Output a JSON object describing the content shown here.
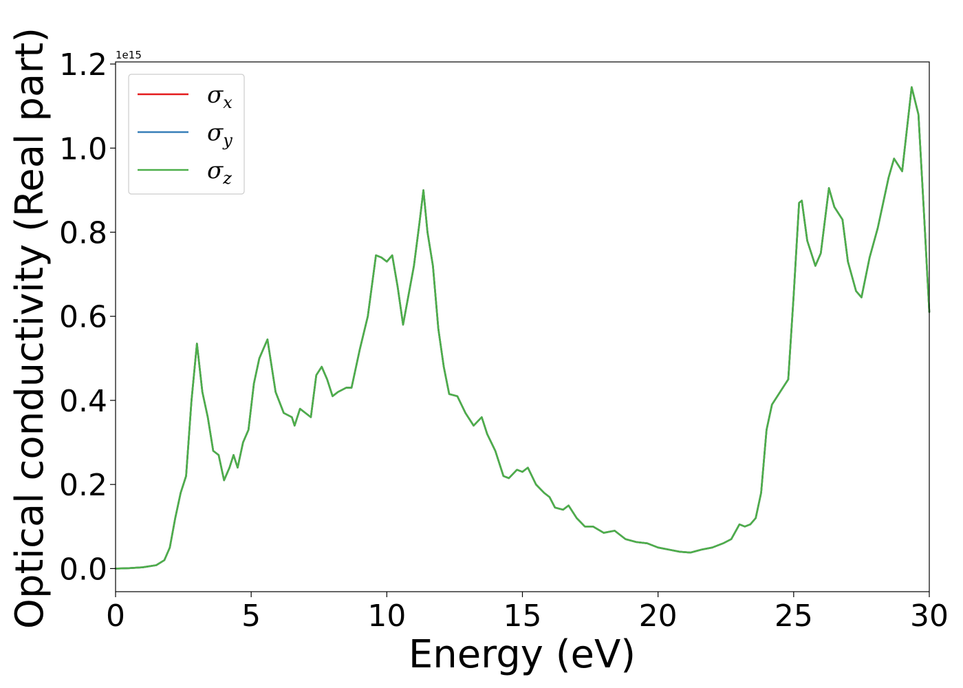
{
  "chart_data": {
    "type": "line",
    "xlabel": "Energy (eV)",
    "ylabel": "Optical conductivity (Real part)",
    "y_offset_text": "1e15",
    "y_multiplier": 1000000000000000.0,
    "xlim": [
      0,
      30
    ],
    "ylim": [
      -0.055,
      1.205
    ],
    "x_ticks": [
      0,
      5,
      10,
      15,
      20,
      25,
      30
    ],
    "x_tick_labels": [
      "0",
      "5",
      "10",
      "15",
      "20",
      "25",
      "30"
    ],
    "y_ticks": [
      0.0,
      0.2,
      0.4,
      0.6,
      0.8,
      1.0,
      1.2
    ],
    "y_tick_labels": [
      "0.0",
      "0.2",
      "0.4",
      "0.6",
      "0.8",
      "1.0",
      "1.2"
    ],
    "grid": false,
    "legend_position": "top-left",
    "series": [
      {
        "symbol": "σ",
        "subscript": "x",
        "color": "#e41a1c"
      },
      {
        "symbol": "σ",
        "subscript": "y",
        "color": "#377eb8"
      },
      {
        "symbol": "σ",
        "subscript": "z",
        "color": "#4daf4a"
      }
    ],
    "x": [
      0,
      0.5,
      1.0,
      1.5,
      1.8,
      2.0,
      2.2,
      2.4,
      2.6,
      2.8,
      3.0,
      3.2,
      3.4,
      3.6,
      3.8,
      4.0,
      4.2,
      4.35,
      4.5,
      4.7,
      4.9,
      5.1,
      5.3,
      5.6,
      5.9,
      6.2,
      6.5,
      6.6,
      6.8,
      7.0,
      7.2,
      7.4,
      7.6,
      7.8,
      8.0,
      8.2,
      8.5,
      8.7,
      9.0,
      9.3,
      9.6,
      9.8,
      10.0,
      10.2,
      10.4,
      10.6,
      10.8,
      11.0,
      11.2,
      11.35,
      11.5,
      11.7,
      11.9,
      12.1,
      12.3,
      12.6,
      12.9,
      13.2,
      13.5,
      13.7,
      14.0,
      14.3,
      14.5,
      14.8,
      15.0,
      15.2,
      15.5,
      15.8,
      16.0,
      16.2,
      16.5,
      16.7,
      17.0,
      17.3,
      17.6,
      18.0,
      18.4,
      18.8,
      19.2,
      19.6,
      20.0,
      20.4,
      20.8,
      21.2,
      21.6,
      22.0,
      22.4,
      22.7,
      23.0,
      23.2,
      23.4,
      23.6,
      23.8,
      24.0,
      24.2,
      24.5,
      24.8,
      25.0,
      25.2,
      25.3,
      25.5,
      25.8,
      26.0,
      26.3,
      26.5,
      26.8,
      27.0,
      27.3,
      27.5,
      27.8,
      28.1,
      28.5,
      28.7,
      29.0,
      29.35,
      29.6,
      29.8,
      30.0
    ],
    "y": [
      0.0,
      0.001,
      0.003,
      0.008,
      0.02,
      0.05,
      0.12,
      0.18,
      0.22,
      0.4,
      0.535,
      0.42,
      0.36,
      0.28,
      0.27,
      0.21,
      0.24,
      0.27,
      0.24,
      0.3,
      0.33,
      0.44,
      0.5,
      0.545,
      0.42,
      0.37,
      0.36,
      0.34,
      0.38,
      0.37,
      0.36,
      0.46,
      0.48,
      0.45,
      0.41,
      0.42,
      0.43,
      0.43,
      0.52,
      0.6,
      0.745,
      0.74,
      0.73,
      0.745,
      0.67,
      0.58,
      0.65,
      0.72,
      0.82,
      0.9,
      0.8,
      0.72,
      0.57,
      0.48,
      0.415,
      0.41,
      0.37,
      0.34,
      0.36,
      0.32,
      0.28,
      0.22,
      0.215,
      0.235,
      0.23,
      0.24,
      0.2,
      0.18,
      0.17,
      0.145,
      0.14,
      0.15,
      0.12,
      0.1,
      0.1,
      0.085,
      0.09,
      0.07,
      0.063,
      0.06,
      0.05,
      0.045,
      0.04,
      0.038,
      0.045,
      0.05,
      0.06,
      0.07,
      0.105,
      0.1,
      0.105,
      0.12,
      0.18,
      0.33,
      0.39,
      0.42,
      0.45,
      0.65,
      0.87,
      0.875,
      0.78,
      0.72,
      0.75,
      0.905,
      0.86,
      0.83,
      0.73,
      0.66,
      0.645,
      0.74,
      0.81,
      0.93,
      0.975,
      0.945,
      1.145,
      1.08,
      0.85,
      0.61
    ]
  }
}
